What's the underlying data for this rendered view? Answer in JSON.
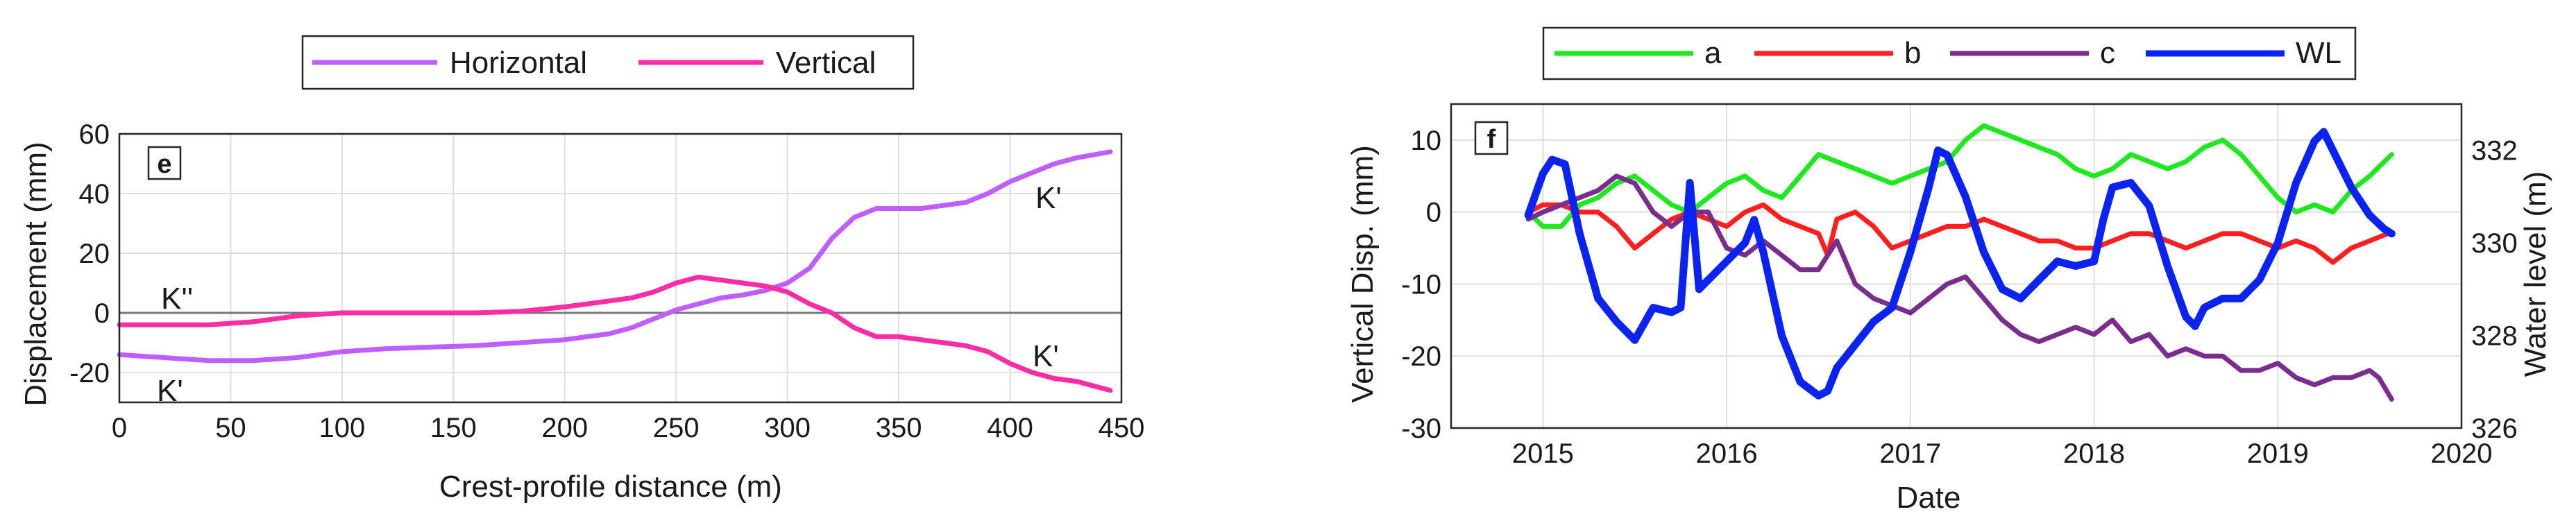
{
  "chart_data": [
    {
      "panel_label": "e",
      "type": "line",
      "xlabel": "Crest-profile distance (m)",
      "ylabel": "Displacement (mm)",
      "xlim": [
        0,
        450
      ],
      "ylim": [
        -30,
        60
      ],
      "xticks": [
        "0",
        "50",
        "100",
        "150",
        "200",
        "250",
        "300",
        "350",
        "400",
        "450"
      ],
      "yticks": [
        "-20",
        "0",
        "20",
        "40",
        "60"
      ],
      "grid": true,
      "legend_position": "top-center-outside",
      "annotations": [
        "K''",
        "K'",
        "K'",
        "K'"
      ],
      "series": [
        {
          "name": "Horizontal",
          "color": "#bf5fff",
          "x": [
            0,
            20,
            40,
            60,
            80,
            100,
            120,
            140,
            160,
            180,
            200,
            210,
            220,
            230,
            240,
            250,
            260,
            270,
            280,
            290,
            300,
            310,
            320,
            330,
            340,
            350,
            360,
            370,
            380,
            390,
            400,
            410,
            420,
            430,
            445
          ],
          "y": [
            -14,
            -15,
            -16,
            -16,
            -15,
            -13,
            -12,
            -11.5,
            -11,
            -10,
            -9,
            -8,
            -7,
            -5,
            -2,
            1,
            3,
            5,
            6,
            7.5,
            10,
            15,
            25,
            32,
            35,
            35,
            35,
            36,
            37,
            40,
            44,
            47,
            50,
            52,
            54
          ]
        },
        {
          "name": "Vertical",
          "color": "#ff2da5",
          "x": [
            0,
            20,
            40,
            60,
            80,
            100,
            120,
            140,
            160,
            180,
            200,
            210,
            220,
            230,
            240,
            250,
            260,
            270,
            280,
            290,
            300,
            310,
            320,
            330,
            340,
            350,
            360,
            370,
            380,
            390,
            400,
            410,
            420,
            430,
            445
          ],
          "y": [
            -4,
            -4,
            -4,
            -3,
            -1,
            0,
            0,
            0,
            0,
            0.5,
            2,
            3,
            4,
            5,
            7,
            10,
            12,
            11,
            10,
            9,
            7,
            3,
            0,
            -5,
            -8,
            -8,
            -9,
            -10,
            -11,
            -13,
            -17,
            -20,
            -22,
            -23,
            -26
          ]
        }
      ]
    },
    {
      "panel_label": "f",
      "type": "line",
      "xlabel": "Date",
      "ylabel": "Vertical Disp. (mm)",
      "y2label": "Water level (m)",
      "xlim": [
        2014.5,
        2020
      ],
      "ylim": [
        -30,
        15
      ],
      "y2lim": [
        326,
        333
      ],
      "xticks": [
        "2015",
        "2016",
        "2017",
        "2018",
        "2019",
        "2020"
      ],
      "yticks": [
        "-30",
        "-20",
        "-10",
        "0",
        "10"
      ],
      "y2ticks": [
        "326",
        "328",
        "330",
        "332"
      ],
      "grid": true,
      "legend_position": "top-center-outside",
      "series": [
        {
          "name": "a",
          "color": "#1ee81e",
          "axis": "left",
          "x": [
            2014.92,
            2015.0,
            2015.1,
            2015.2,
            2015.3,
            2015.4,
            2015.5,
            2015.6,
            2015.7,
            2015.8,
            2015.9,
            2016.0,
            2016.1,
            2016.2,
            2016.3,
            2016.4,
            2016.5,
            2016.6,
            2016.7,
            2016.8,
            2016.9,
            2017.0,
            2017.1,
            2017.2,
            2017.3,
            2017.4,
            2017.5,
            2017.6,
            2017.7,
            2017.8,
            2017.9,
            2018.0,
            2018.1,
            2018.2,
            2018.3,
            2018.4,
            2018.5,
            2018.6,
            2018.7,
            2018.8,
            2018.9,
            2019.0,
            2019.1,
            2019.2,
            2019.3,
            2019.4,
            2019.5,
            2019.58,
            2019.62
          ],
          "y": [
            0,
            -2,
            -2,
            1,
            2,
            4,
            5,
            3,
            1,
            0,
            2,
            4,
            5,
            3,
            2,
            5,
            8,
            7,
            6,
            5,
            4,
            5,
            6,
            7,
            10,
            12,
            11,
            10,
            9,
            8,
            6,
            5,
            6,
            8,
            7,
            6,
            7,
            9,
            10,
            8,
            5,
            2,
            0,
            1,
            0,
            3,
            5,
            7,
            8
          ]
        },
        {
          "name": "b",
          "color": "#ff1f1f",
          "axis": "left",
          "x": [
            2014.92,
            2015.0,
            2015.1,
            2015.2,
            2015.3,
            2015.4,
            2015.5,
            2015.6,
            2015.7,
            2015.8,
            2015.9,
            2016.0,
            2016.1,
            2016.2,
            2016.3,
            2016.4,
            2016.5,
            2016.55,
            2016.6,
            2016.7,
            2016.8,
            2016.9,
            2017.0,
            2017.1,
            2017.2,
            2017.3,
            2017.4,
            2017.5,
            2017.6,
            2017.7,
            2017.8,
            2017.9,
            2018.0,
            2018.1,
            2018.2,
            2018.3,
            2018.4,
            2018.5,
            2018.6,
            2018.7,
            2018.8,
            2018.9,
            2019.0,
            2019.1,
            2019.2,
            2019.3,
            2019.4,
            2019.5,
            2019.6
          ],
          "y": [
            0,
            1,
            1,
            0,
            0,
            -2,
            -5,
            -3,
            -1,
            0,
            -1,
            -2,
            0,
            1,
            -1,
            -2,
            -3,
            -6,
            -1,
            0,
            -2,
            -5,
            -4,
            -3,
            -2,
            -2,
            -1,
            -2,
            -3,
            -4,
            -4,
            -5,
            -5,
            -4,
            -3,
            -3,
            -4,
            -5,
            -4,
            -3,
            -3,
            -4,
            -5,
            -4,
            -5,
            -7,
            -5,
            -4,
            -3
          ]
        },
        {
          "name": "c",
          "color": "#7b2d8e",
          "axis": "left",
          "x": [
            2014.92,
            2015.0,
            2015.1,
            2015.2,
            2015.3,
            2015.4,
            2015.5,
            2015.6,
            2015.7,
            2015.8,
            2015.9,
            2016.0,
            2016.1,
            2016.2,
            2016.3,
            2016.4,
            2016.5,
            2016.6,
            2016.7,
            2016.8,
            2016.9,
            2017.0,
            2017.1,
            2017.2,
            2017.3,
            2017.4,
            2017.5,
            2017.6,
            2017.7,
            2017.8,
            2017.9,
            2018.0,
            2018.1,
            2018.2,
            2018.3,
            2018.4,
            2018.5,
            2018.6,
            2018.7,
            2018.8,
            2018.9,
            2019.0,
            2019.1,
            2019.2,
            2019.3,
            2019.4,
            2019.5,
            2019.55,
            2019.62
          ],
          "y": [
            -1,
            0,
            1,
            2,
            3,
            5,
            4,
            0,
            -2,
            0,
            0,
            -5,
            -6,
            -4,
            -6,
            -8,
            -8,
            -4,
            -10,
            -12,
            -13,
            -14,
            -12,
            -10,
            -9,
            -12,
            -15,
            -17,
            -18,
            -17,
            -16,
            -17,
            -15,
            -18,
            -17,
            -20,
            -19,
            -20,
            -20,
            -22,
            -22,
            -21,
            -23,
            -24,
            -23,
            -23,
            -22,
            -23,
            -26
          ]
        },
        {
          "name": "WL",
          "color": "#0a23f0",
          "axis": "right",
          "x": [
            2014.92,
            2015.0,
            2015.05,
            2015.12,
            2015.2,
            2015.3,
            2015.4,
            2015.5,
            2015.6,
            2015.7,
            2015.75,
            2015.8,
            2015.85,
            2015.9,
            2016.0,
            2016.1,
            2016.15,
            2016.2,
            2016.3,
            2016.4,
            2016.5,
            2016.55,
            2016.6,
            2016.7,
            2016.8,
            2016.9,
            2017.0,
            2017.1,
            2017.15,
            2017.2,
            2017.3,
            2017.4,
            2017.5,
            2017.6,
            2017.7,
            2017.8,
            2017.9,
            2018.0,
            2018.05,
            2018.1,
            2018.2,
            2018.3,
            2018.4,
            2018.5,
            2018.55,
            2018.6,
            2018.7,
            2018.8,
            2018.9,
            2019.0,
            2019.1,
            2019.2,
            2019.25,
            2019.3,
            2019.4,
            2019.5,
            2019.58,
            2019.62
          ],
          "y": [
            330.6,
            331.5,
            331.8,
            331.7,
            330.2,
            328.8,
            328.3,
            327.9,
            328.6,
            328.5,
            328.6,
            331.3,
            329.0,
            329.2,
            329.6,
            330.0,
            330.5,
            329.8,
            328.0,
            327.0,
            326.7,
            326.8,
            327.3,
            327.8,
            328.3,
            328.6,
            329.8,
            331.2,
            332.0,
            331.9,
            331.0,
            329.8,
            329.0,
            328.8,
            329.2,
            329.6,
            329.5,
            329.6,
            330.5,
            331.2,
            331.3,
            330.8,
            329.5,
            328.4,
            328.2,
            328.6,
            328.8,
            328.8,
            329.2,
            330.0,
            331.3,
            332.2,
            332.4,
            332.0,
            331.2,
            330.6,
            330.3,
            330.2
          ]
        }
      ]
    }
  ]
}
